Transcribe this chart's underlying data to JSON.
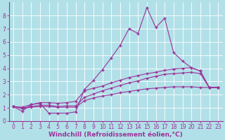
{
  "background_color": "#b2e0e8",
  "grid_color": "#c8e8ec",
  "line_color": "#993399",
  "marker_color": "#993399",
  "xlabel": "Windchill (Refroidissement éolien,°C)",
  "xlim": [
    -0.5,
    23.5
  ],
  "ylim": [
    0,
    9
  ],
  "xticks": [
    0,
    1,
    2,
    3,
    4,
    5,
    6,
    7,
    8,
    9,
    10,
    11,
    12,
    13,
    14,
    15,
    16,
    17,
    18,
    19,
    20,
    21,
    22,
    23
  ],
  "yticks": [
    0,
    1,
    2,
    3,
    4,
    5,
    6,
    7,
    8
  ],
  "series": [
    [
      1.1,
      0.75,
      1.25,
      1.35,
      0.6,
      0.6,
      0.6,
      0.7,
      2.4,
      3.1,
      3.9,
      4.8,
      5.75,
      7.0,
      6.65,
      8.6,
      7.1,
      7.8,
      5.2,
      4.55,
      4.05,
      3.8,
      2.55,
      2.55
    ],
    [
      1.1,
      1.05,
      1.25,
      1.4,
      1.4,
      1.35,
      1.4,
      1.5,
      2.3,
      2.5,
      2.65,
      2.9,
      3.1,
      3.3,
      3.45,
      3.6,
      3.7,
      3.85,
      3.95,
      4.0,
      4.05,
      3.8,
      2.55,
      2.55
    ],
    [
      1.1,
      0.95,
      1.05,
      1.1,
      1.1,
      1.05,
      1.05,
      1.05,
      1.55,
      1.75,
      1.9,
      2.0,
      2.15,
      2.25,
      2.35,
      2.45,
      2.5,
      2.55,
      2.6,
      2.6,
      2.6,
      2.55,
      2.55,
      2.55
    ],
    [
      1.1,
      1.0,
      1.1,
      1.2,
      1.2,
      1.1,
      1.15,
      1.15,
      1.8,
      2.05,
      2.3,
      2.5,
      2.7,
      2.9,
      3.05,
      3.25,
      3.4,
      3.55,
      3.6,
      3.65,
      3.7,
      3.6,
      2.55,
      2.55
    ]
  ],
  "tick_fontsize": 5.5,
  "label_fontsize": 6.5,
  "label_fontweight": "bold"
}
